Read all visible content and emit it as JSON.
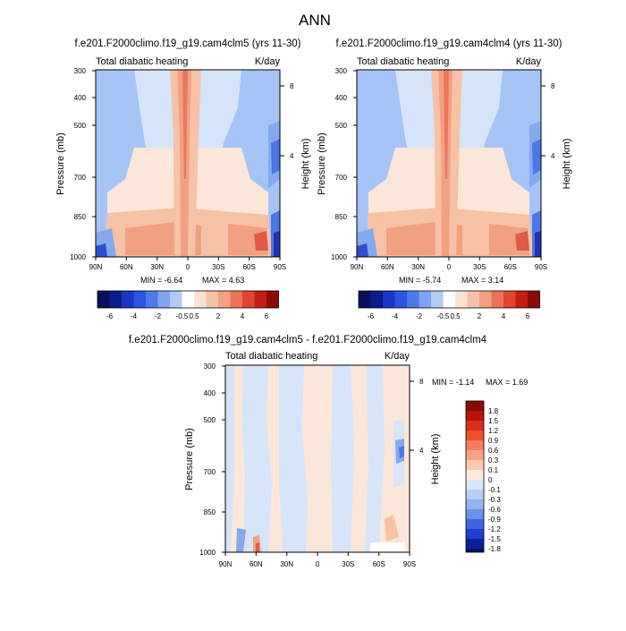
{
  "page_title": "ANN",
  "chart_data": [
    {
      "type": "heatmap",
      "title": "f.e201.F2000climo.f19_g19.cam4clm5 (yrs 11-30)",
      "left_label": "Total diabatic heating",
      "right_label": "K/day",
      "ylabel": "Pressure (mb)",
      "y2label": "Height (km)",
      "x_ticks": [
        "90N",
        "60N",
        "30N",
        "0",
        "30S",
        "60S",
        "90S"
      ],
      "y_ticks": [
        "300",
        "400",
        "500",
        "700",
        "850",
        "1000"
      ],
      "y2_ticks": [
        "8",
        "4"
      ],
      "min_label": "MIN = -6.64",
      "max_label": "MAX = 4.63",
      "contour_levels": [
        -6,
        -5,
        -4,
        -3,
        -2,
        -1,
        -0.5,
        0,
        0.5,
        1,
        2,
        3,
        4,
        5,
        6
      ],
      "colorbar_labels": [
        "-6",
        "-4",
        "-2",
        "-0.5",
        "0.5",
        "2",
        "4",
        "6"
      ]
    },
    {
      "type": "heatmap",
      "title": "f.e201.F2000climo.f19_g19.cam4clm4 (yrs 11-30)",
      "left_label": "Total diabatic heating",
      "right_label": "K/day",
      "ylabel": "Pressure (mb)",
      "y2label": "Height (km)",
      "x_ticks": [
        "90N",
        "60N",
        "30N",
        "0",
        "30S",
        "60S",
        "90S"
      ],
      "y_ticks": [
        "300",
        "400",
        "500",
        "700",
        "850",
        "1000"
      ],
      "y2_ticks": [
        "8",
        "4"
      ],
      "min_label": "MIN = -5.74",
      "max_label": "MAX = 3.14",
      "contour_levels": [
        -6,
        -5,
        -4,
        -3,
        -2,
        -1,
        -0.5,
        0,
        0.5,
        1,
        2,
        3,
        4,
        5,
        6
      ],
      "colorbar_labels": [
        "-6",
        "-4",
        "-2",
        "-0.5",
        "0.5",
        "2",
        "4",
        "6"
      ]
    },
    {
      "type": "heatmap",
      "title": "f.e201.F2000climo.f19_g19.cam4clm5 - f.e201.F2000climo.f19_g19.cam4clm4",
      "left_label": "Total diabatic heating",
      "right_label": "K/day",
      "ylabel": "Pressure (mb)",
      "y2label": "Height (km)",
      "x_ticks": [
        "90N",
        "60N",
        "30N",
        "0",
        "30S",
        "60S",
        "90S"
      ],
      "y_ticks": [
        "300",
        "400",
        "500",
        "700",
        "850",
        "1000"
      ],
      "y2_ticks": [
        "8",
        "4"
      ],
      "min_label": "MIN = -1.14",
      "max_label": "MAX = 1.69",
      "colorbar_labels": [
        "1.8",
        "1.5",
        "1.2",
        "0.9",
        "0.6",
        "0.3",
        "0.1",
        "0",
        "-0.1",
        "-0.3",
        "-0.6",
        "-0.9",
        "-1.2",
        "-1.5",
        "-1.8"
      ]
    }
  ]
}
